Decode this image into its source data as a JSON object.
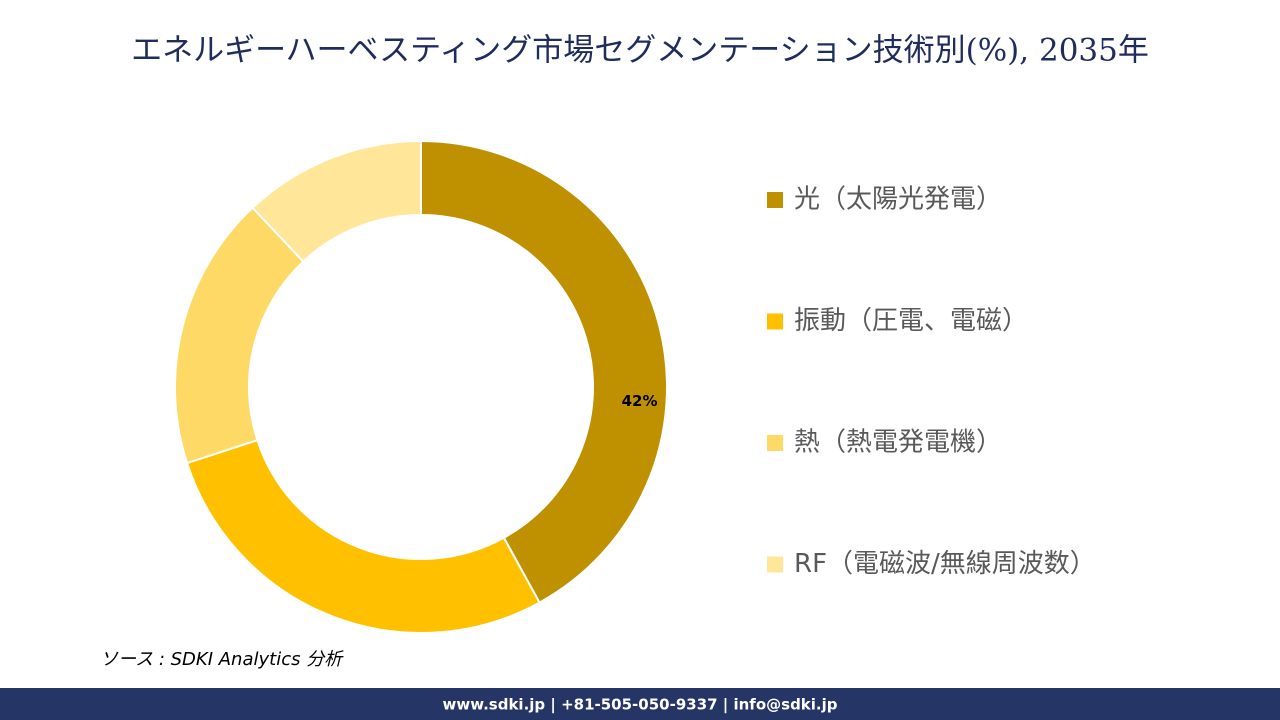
{
  "chart_data": {
    "type": "donut",
    "title": "エネルギーハーベスティング市場セグメンテーション技術別(%), 2035年",
    "categories": [
      "光（太陽光発電）",
      "振動（圧電、電磁）",
      "熱（熱電発電機）",
      "RF（電磁波/無線周波数）"
    ],
    "values": [
      42,
      28,
      18,
      12
    ],
    "value_labels": [
      "42%",
      null,
      null,
      null
    ],
    "colors": [
      "#BF9000",
      "#FFC000",
      "#FFD966",
      "#FFE699"
    ],
    "legend": "right"
  },
  "source": "ソース : SDKI Analytics 分析",
  "footer": "www.sdki.jp | +81-505-050-9337 | info@sdki.jp"
}
